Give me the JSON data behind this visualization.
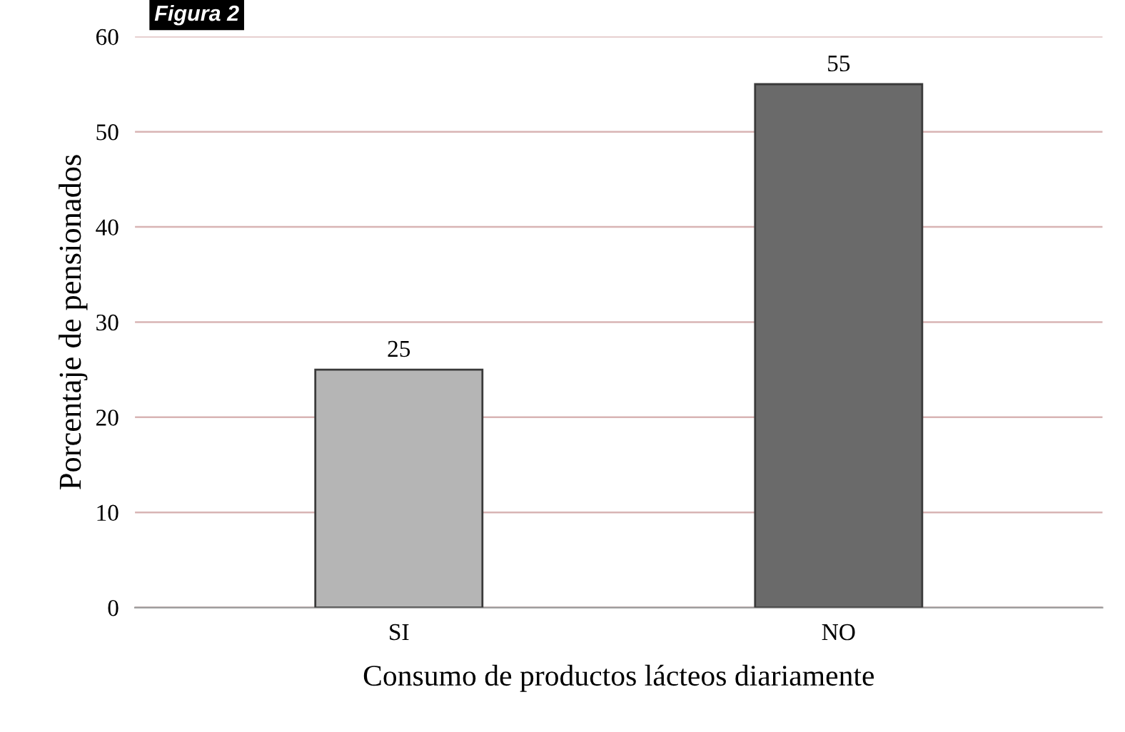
{
  "chart_data": {
    "type": "bar",
    "title": "Figura 2",
    "xlabel": "Consumo de productos lácteos diariamente",
    "ylabel": "Porcentaje de pensionados",
    "categories": [
      "SI",
      "NO"
    ],
    "values": [
      25,
      55
    ],
    "colors": [
      "#b5b5b5",
      "#6a6a6a"
    ],
    "ylim": [
      0,
      60
    ],
    "yticks": [
      0,
      10,
      20,
      30,
      40,
      50,
      60
    ],
    "grid": "y",
    "data_labels": true
  }
}
